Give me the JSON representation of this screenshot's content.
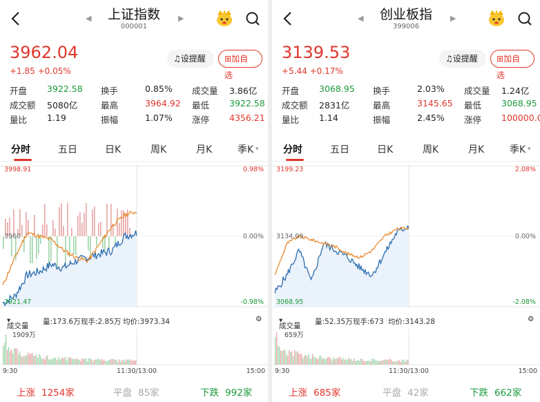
{
  "panels": [
    {
      "title": "上证指数",
      "code": "000001",
      "price": "3962.04",
      "change": "+1.85  +0.05%",
      "remind_label": "设提醒",
      "add_label": "加自选",
      "stats": [
        [
          {
            "l": "开盘",
            "v": "3922.58",
            "c": "grn"
          },
          {
            "l": "换手",
            "v": "0.85%",
            "c": "blk"
          },
          {
            "l": "成交量",
            "v": "3.86亿",
            "c": "blk"
          }
        ],
        [
          {
            "l": "成交额",
            "v": "5080亿",
            "c": "blk"
          },
          {
            "l": "最高",
            "v": "3964.92",
            "c": "red"
          },
          {
            "l": "最低",
            "v": "3922.58",
            "c": "grn"
          }
        ],
        [
          {
            "l": "量比",
            "v": "1.19",
            "c": "blk"
          },
          {
            "l": "振幅",
            "v": "1.07%",
            "c": "blk"
          },
          {
            "l": "涨停",
            "v": "4356.21",
            "c": "red"
          }
        ]
      ],
      "tabs": [
        "分时",
        "五日",
        "日K",
        "周K",
        "月K",
        "季K"
      ],
      "chart": {
        "top_price": "3998.91",
        "top_pct": "0.98%",
        "mid_price": "3960",
        "mid_pct": "0.00%",
        "bot_price": "3921.47",
        "bot_pct": "-0.98%"
      },
      "vol_bar": {
        "selector": "成交量",
        "vol": "量:173.6万",
        "now": "现手:2.85万",
        "avg": "均价:3973.34"
      },
      "vol_peak": "1909万",
      "time_start": "9:30",
      "time_mid": "11:30/13:00",
      "time_end": "15:00",
      "breadth": {
        "up_label": "上涨",
        "up": "1254家",
        "flat_label": "平盘",
        "flat": "85家",
        "down_label": "下跌",
        "down": "992家"
      }
    },
    {
      "title": "创业板指",
      "code": "399006",
      "price": "3139.53",
      "change": "+5.44  +0.17%",
      "remind_label": "设提醒",
      "add_label": "加自选",
      "stats": [
        [
          {
            "l": "开盘",
            "v": "3068.95",
            "c": "grn"
          },
          {
            "l": "换手",
            "v": "2.03%",
            "c": "blk"
          },
          {
            "l": "成交量",
            "v": "1.24亿",
            "c": "blk"
          }
        ],
        [
          {
            "l": "成交额",
            "v": "2831亿",
            "c": "blk"
          },
          {
            "l": "最高",
            "v": "3145.65",
            "c": "red"
          },
          {
            "l": "最低",
            "v": "3068.95",
            "c": "grn"
          }
        ],
        [
          {
            "l": "量比",
            "v": "1.14",
            "c": "blk"
          },
          {
            "l": "振幅",
            "v": "2.45%",
            "c": "blk"
          },
          {
            "l": "涨停",
            "v": "100000.0",
            "c": "red"
          }
        ]
      ],
      "tabs": [
        "分时",
        "五日",
        "日K",
        "周K",
        "月K",
        "季K"
      ],
      "chart": {
        "top_price": "3199.23",
        "top_pct": "2.08%",
        "mid_price": "3134.09",
        "mid_pct": "0.00%",
        "bot_price": "3068.95",
        "bot_pct": "-2.08%"
      },
      "vol_bar": {
        "selector": "成交量",
        "vol": "量:52.35万",
        "now": "现手:673",
        "avg": "均价:3143.28"
      },
      "vol_peak": "659万",
      "time_start": "9:30",
      "time_mid": "11:30/13:00",
      "time_end": "15:00",
      "breadth": {
        "up_label": "上涨",
        "up": "685家",
        "flat_label": "平盘",
        "flat": "42家",
        "down_label": "下跌",
        "down": "662家"
      }
    }
  ],
  "colors": {
    "up": "#e0352b",
    "down": "#1a9a3a",
    "price_line": "#2b6cb0",
    "avg_line": "#e8892b"
  },
  "icons": [
    "back-icon",
    "prev-arrow-icon",
    "next-arrow-icon",
    "mascot-icon",
    "search-icon",
    "bell-icon",
    "plus-square-icon",
    "settings-icon",
    "chevron-down-icon"
  ]
}
